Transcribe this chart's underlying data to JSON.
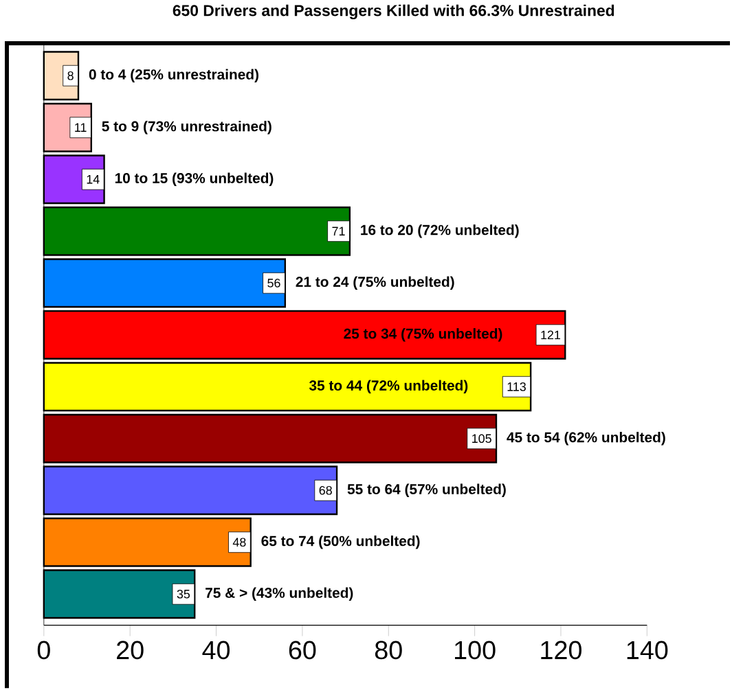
{
  "chart_data": {
    "type": "bar",
    "orientation": "horizontal",
    "title": "650 Drivers and Passengers Killed with 66.3% Unrestrained",
    "categories": [
      "0 to 4 (25% unrestrained)",
      "5 to 9 (73% unrestrained)",
      "10 to 15 (93% unbelted)",
      "16 to 20 (72% unbelted)",
      "21 to 24 (75% unbelted)",
      "25 to 34 (75% unbelted)",
      "35 to 44 (72% unbelted)",
      "45 to 54 (62% unbelted)",
      "55 to 64 (57% unbelted)",
      "65 to 74 (50% unbelted)",
      "75 & > (43% unbelted)"
    ],
    "values": [
      8,
      11,
      14,
      71,
      56,
      121,
      113,
      105,
      68,
      48,
      35
    ],
    "colors": [
      "#ffdfbf",
      "#ffb3b3",
      "#9933ff",
      "#008000",
      "#0080ff",
      "#ff0000",
      "#ffff00",
      "#990000",
      "#5a5aff",
      "#ff8000",
      "#008080"
    ],
    "xlim": [
      0,
      140
    ],
    "xticks": [
      0,
      20,
      40,
      60,
      80,
      100,
      120,
      140
    ],
    "tick_labels": "x",
    "data_labels": true,
    "grid": false
  }
}
